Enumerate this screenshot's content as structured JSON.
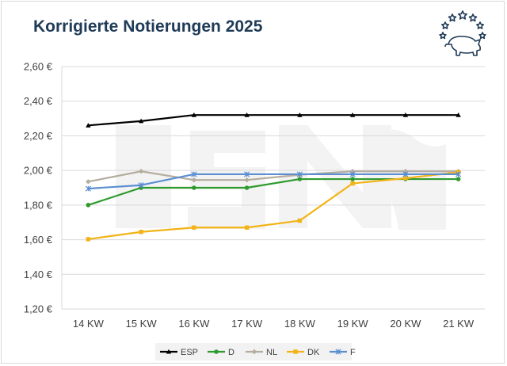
{
  "header": {
    "title": "Korrigierte Notierungen 2025"
  },
  "logo": {
    "icon": "pig-with-eu-stars-icon"
  },
  "watermark": {
    "text": "ISN"
  },
  "chart_data": {
    "type": "line",
    "title": "Korrigierte Notierungen 2025",
    "xlabel": "",
    "ylabel": "",
    "categories": [
      "14 KW",
      "15 KW",
      "16 KW",
      "17 KW",
      "18 KW",
      "19 KW",
      "20 KW",
      "21 KW"
    ],
    "ylim": [
      1.2,
      2.6
    ],
    "ytick_values": [
      1.2,
      1.4,
      1.6,
      1.8,
      2.0,
      2.2,
      2.4,
      2.6
    ],
    "ytick_labels": [
      "1,20 €",
      "1,40 €",
      "1,60 €",
      "1,80 €",
      "2,00 €",
      "2,20 €",
      "2,40 €",
      "2,60 €"
    ],
    "grid": true,
    "legend_position": "bottom",
    "series": [
      {
        "name": "ESP",
        "color": "#000000",
        "marker": "triangle",
        "values": [
          2.26,
          2.285,
          2.32,
          2.32,
          2.32,
          2.32,
          2.32,
          2.32
        ]
      },
      {
        "name": "D",
        "color": "#2e9a2e",
        "marker": "circle",
        "values": [
          1.8,
          1.9,
          1.9,
          1.9,
          1.95,
          1.95,
          1.95,
          1.95
        ]
      },
      {
        "name": "NL",
        "color": "#b5ada0",
        "marker": "diamond",
        "values": [
          1.935,
          1.995,
          1.945,
          1.945,
          1.975,
          1.995,
          1.995,
          1.995
        ]
      },
      {
        "name": "DK",
        "color": "#f2b316",
        "marker": "square",
        "values": [
          1.603,
          1.645,
          1.67,
          1.67,
          1.71,
          1.925,
          1.955,
          1.99
        ]
      },
      {
        "name": "F",
        "color": "#5b8fd1",
        "marker": "star",
        "values": [
          1.895,
          1.915,
          1.978,
          1.978,
          1.978,
          1.978,
          1.978,
          1.978
        ]
      }
    ]
  }
}
